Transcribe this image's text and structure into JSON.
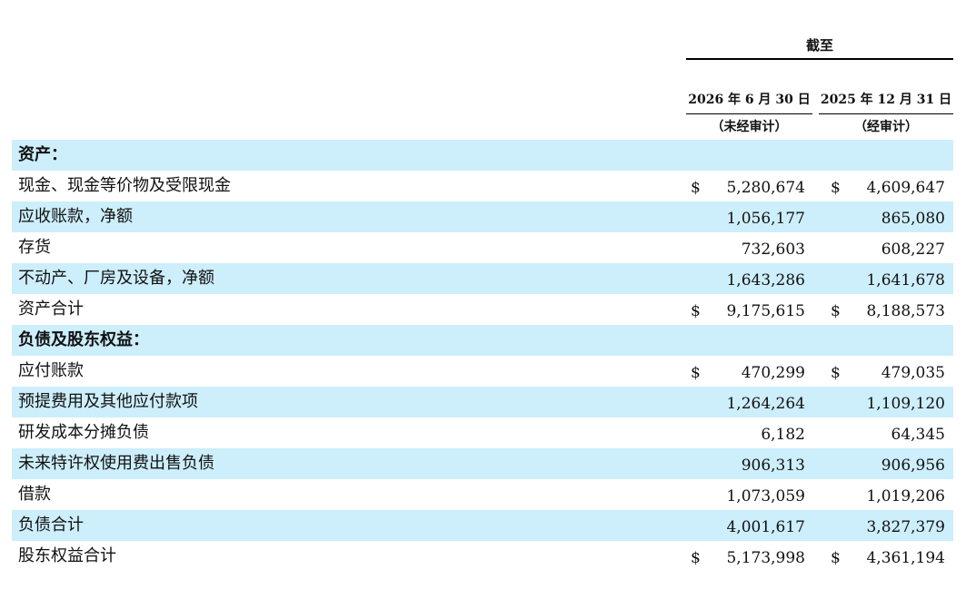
{
  "header": {
    "as_of": "截至",
    "col1_date": "2026 年 6 月 30 日",
    "col1_note": "（未经审计）",
    "col2_date": "2025 年 12 月 31 日",
    "col2_note": "（经审计）"
  },
  "rows": [
    {
      "label": "资产：",
      "section": true,
      "shaded": true,
      "d1": "",
      "v1": "",
      "d2": "",
      "v2": ""
    },
    {
      "label": "现金、现金等价物及受限现金",
      "section": false,
      "shaded": false,
      "d1": "$",
      "v1": "5,280,674",
      "d2": "$",
      "v2": "4,609,647"
    },
    {
      "label": "应收账款，净额",
      "section": false,
      "shaded": true,
      "d1": "",
      "v1": "1,056,177",
      "d2": "",
      "v2": "865,080"
    },
    {
      "label": "存货",
      "section": false,
      "shaded": false,
      "d1": "",
      "v1": "732,603",
      "d2": "",
      "v2": "608,227"
    },
    {
      "label": "不动产、厂房及设备，净额",
      "section": false,
      "shaded": true,
      "d1": "",
      "v1": "1,643,286",
      "d2": "",
      "v2": "1,641,678"
    },
    {
      "label": "资产合计",
      "section": false,
      "shaded": false,
      "d1": "$",
      "v1": "9,175,615",
      "d2": "$",
      "v2": "8,188,573"
    },
    {
      "label": "负债及股东权益：",
      "section": true,
      "shaded": true,
      "d1": "",
      "v1": "",
      "d2": "",
      "v2": ""
    },
    {
      "label": "应付账款",
      "section": false,
      "shaded": false,
      "d1": "$",
      "v1": "470,299",
      "d2": "$",
      "v2": "479,035"
    },
    {
      "label": "预提费用及其他应付款项",
      "section": false,
      "shaded": true,
      "d1": "",
      "v1": "1,264,264",
      "d2": "",
      "v2": "1,109,120"
    },
    {
      "label": "研发成本分摊负债",
      "section": false,
      "shaded": false,
      "d1": "",
      "v1": "6,182",
      "d2": "",
      "v2": "64,345"
    },
    {
      "label": "未来特许权使用费出售负债",
      "section": false,
      "shaded": true,
      "d1": "",
      "v1": "906,313",
      "d2": "",
      "v2": "906,956"
    },
    {
      "label": "借款",
      "section": false,
      "shaded": false,
      "d1": "",
      "v1": "1,073,059",
      "d2": "",
      "v2": "1,019,206"
    },
    {
      "label": "负债合计",
      "section": false,
      "shaded": true,
      "d1": "",
      "v1": "4,001,617",
      "d2": "",
      "v2": "3,827,379"
    },
    {
      "label": "股东权益合计",
      "section": false,
      "shaded": false,
      "d1": "$",
      "v1": "5,173,998",
      "d2": "$",
      "v2": "4,361,194"
    }
  ]
}
